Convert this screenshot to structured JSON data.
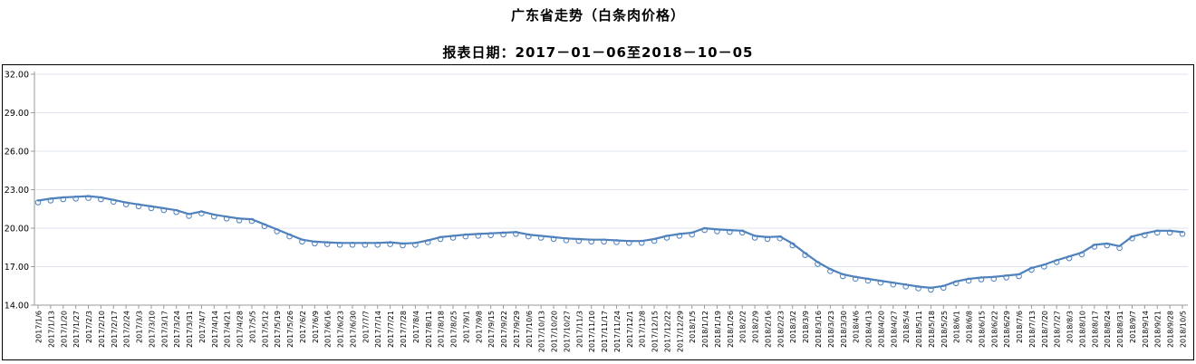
{
  "header": {
    "title": "广东省走势（白条肉价格）",
    "subtitle": "报表日期：2017－01－06至2018－10－05"
  },
  "chart_data": {
    "type": "line",
    "title": "广东省走势（白条肉价格）",
    "xlabel": "",
    "ylabel": "",
    "ylim": [
      14,
      32
    ],
    "ytick_step": 3,
    "ytick_labels": [
      "14.00",
      "17.00",
      "20.00",
      "23.00",
      "26.00",
      "29.00",
      "32.00"
    ],
    "grid": true,
    "legend_position": "none",
    "line_color": "#4f81bd",
    "marker_style": "open-circle",
    "marker_fill": "#ffffff",
    "gridline_color": "#dce3ee",
    "axis_color": "#9a9a9a",
    "tick_label_color": "#000000",
    "x": [
      "2017/1/6",
      "2017/1/13",
      "2017/1/20",
      "2017/1/27",
      "2017/2/3",
      "2017/2/10",
      "2017/2/17",
      "2017/2/24",
      "2017/3/3",
      "2017/3/10",
      "2017/3/17",
      "2017/3/24",
      "2017/3/31",
      "2017/4/7",
      "2017/4/14",
      "2017/4/21",
      "2017/4/28",
      "2017/5/5",
      "2017/5/12",
      "2017/5/19",
      "2017/5/26",
      "2017/6/2",
      "2017/6/9",
      "2017/6/16",
      "2017/6/23",
      "2017/6/30",
      "2017/7/7",
      "2017/7/14",
      "2017/7/21",
      "2017/7/28",
      "2017/8/4",
      "2017/8/11",
      "2017/8/18",
      "2017/8/25",
      "2017/9/1",
      "2017/9/8",
      "2017/9/15",
      "2017/9/22",
      "2017/9/29",
      "2017/10/6",
      "2017/10/13",
      "2017/10/20",
      "2017/10/27",
      "2017/11/3",
      "2017/11/10",
      "2017/11/17",
      "2017/11/24",
      "2017/12/1",
      "2017/12/8",
      "2017/12/15",
      "2017/12/22",
      "2017/12/29",
      "2018/1/5",
      "2018/1/12",
      "2018/1/19",
      "2018/1/26",
      "2018/2/2",
      "2018/2/9",
      "2018/2/16",
      "2018/2/23",
      "2018/3/2",
      "2018/3/9",
      "2018/3/16",
      "2018/3/23",
      "2018/3/30",
      "2018/4/6",
      "2018/4/13",
      "2018/4/20",
      "2018/4/27",
      "2018/5/4",
      "2018/5/11",
      "2018/5/18",
      "2018/5/25",
      "2018/6/1",
      "2018/6/8",
      "2018/6/15",
      "2018/6/22",
      "2018/6/29",
      "2018/7/6",
      "2018/7/13",
      "2018/7/20",
      "2018/7/27",
      "2018/8/3",
      "2018/8/10",
      "2018/8/17",
      "2018/8/24",
      "2018/8/31",
      "2018/9/7",
      "2018/9/14",
      "2018/9/21",
      "2018/9/28",
      "2018/10/5"
    ],
    "series": [
      {
        "name": "白条肉价格",
        "values": [
          22.15,
          22.3,
          22.4,
          22.45,
          22.5,
          22.4,
          22.2,
          22.0,
          21.85,
          21.7,
          21.55,
          21.4,
          21.1,
          21.3,
          21.05,
          20.9,
          20.75,
          20.7,
          20.3,
          19.9,
          19.5,
          19.1,
          18.95,
          18.9,
          18.85,
          18.85,
          18.85,
          18.85,
          18.9,
          18.8,
          18.85,
          19.05,
          19.3,
          19.4,
          19.5,
          19.55,
          19.6,
          19.65,
          19.7,
          19.5,
          19.4,
          19.3,
          19.2,
          19.15,
          19.1,
          19.1,
          19.05,
          19.0,
          19.0,
          19.15,
          19.4,
          19.55,
          19.65,
          20.0,
          19.9,
          19.85,
          19.8,
          19.4,
          19.3,
          19.35,
          18.8,
          18.05,
          17.35,
          16.8,
          16.4,
          16.2,
          16.05,
          15.9,
          15.75,
          15.6,
          15.45,
          15.35,
          15.5,
          15.85,
          16.05,
          16.15,
          16.2,
          16.3,
          16.4,
          16.9,
          17.15,
          17.5,
          17.8,
          18.1,
          18.7,
          18.8,
          18.6,
          19.35,
          19.6,
          19.8,
          19.8,
          19.7
        ]
      }
    ]
  }
}
